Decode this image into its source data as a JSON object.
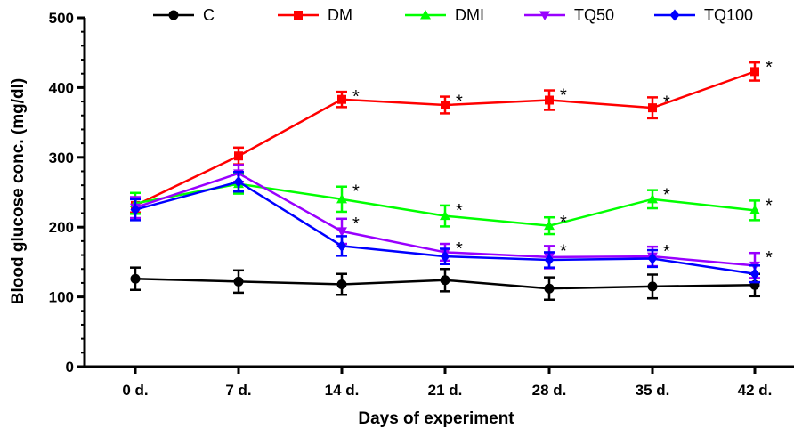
{
  "chart_data": {
    "type": "line",
    "xlabel": "Days of experiment",
    "ylabel": "Blood glucose conc. (mg/dl)",
    "categories": [
      "0 d.",
      "7 d.",
      "14 d.",
      "21 d.",
      "28 d.",
      "35 d.",
      "42 d."
    ],
    "ylim": [
      0,
      500
    ],
    "yticks": [
      0,
      100,
      200,
      300,
      400,
      500
    ],
    "yticks_label": [
      "0",
      "100",
      "200",
      "300",
      "400",
      "500"
    ],
    "legend_position": "top",
    "series": [
      {
        "name": "C",
        "color": "#000000",
        "marker": "circle",
        "values": [
          126,
          122,
          118,
          124,
          112,
          115,
          117
        ],
        "errors": [
          16,
          16,
          15,
          16,
          16,
          17,
          16
        ],
        "significant": [
          false,
          false,
          false,
          false,
          false,
          false,
          false
        ]
      },
      {
        "name": "DM",
        "color": "#ff0000",
        "marker": "square",
        "values": [
          231,
          302,
          383,
          375,
          382,
          371,
          423
        ],
        "errors": [
          10,
          12,
          11,
          12,
          14,
          15,
          13
        ],
        "significant": [
          false,
          false,
          true,
          true,
          true,
          true,
          true
        ]
      },
      {
        "name": "DMI",
        "color": "#00ff00",
        "marker": "triangle-up",
        "values": [
          234,
          262,
          240,
          216,
          202,
          240,
          224
        ],
        "errors": [
          15,
          14,
          18,
          15,
          12,
          13,
          14
        ],
        "significant": [
          false,
          false,
          true,
          true,
          true,
          true,
          true
        ]
      },
      {
        "name": "TQ50",
        "color": "#9900ff",
        "marker": "triangle-down",
        "values": [
          228,
          277,
          194,
          164,
          157,
          158,
          145
        ],
        "errors": [
          15,
          12,
          18,
          12,
          16,
          14,
          18
        ],
        "significant": [
          false,
          false,
          true,
          true,
          true,
          true,
          true
        ]
      },
      {
        "name": "TQ100",
        "color": "#0000ff",
        "marker": "diamond",
        "values": [
          225,
          265,
          173,
          158,
          153,
          155,
          133
        ],
        "errors": [
          15,
          14,
          14,
          11,
          11,
          12,
          12
        ],
        "significant": [
          false,
          false,
          false,
          false,
          false,
          false,
          false
        ]
      }
    ],
    "significance_mark": "*"
  }
}
